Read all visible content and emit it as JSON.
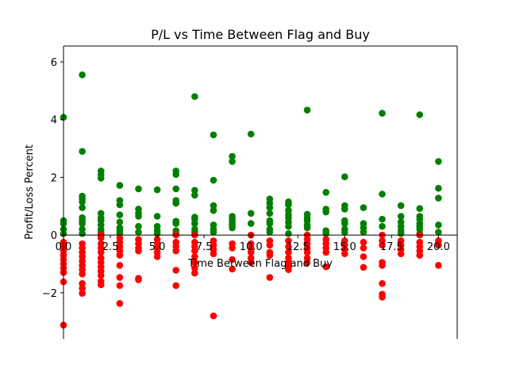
{
  "chart_data": {
    "type": "scatter",
    "title": "P/L vs Time Between Flag and Buy",
    "xlabel": "Time Between Flag and Buy",
    "ylabel": "Profit/Loss Percent",
    "xlim": [
      0,
      21
    ],
    "ylim": [
      -3.6,
      6.55
    ],
    "xticks": [
      "0.0",
      "2.5",
      "5.0",
      "7.5",
      "10.0",
      "12.5",
      "15.0",
      "17.5",
      "20.0"
    ],
    "xtick_values": [
      0,
      2.5,
      5,
      7.5,
      10,
      12.5,
      15,
      17.5,
      20
    ],
    "yticks": [
      "−2",
      "0",
      "2",
      "4",
      "6"
    ],
    "ytick_values": [
      -2,
      0,
      2,
      4,
      6
    ],
    "grid": false,
    "colors": {
      "profit": "#008000",
      "loss": "#ff0000"
    },
    "series": [
      {
        "color": "profit",
        "points": [
          [
            0,
            4.08
          ],
          [
            0,
            0.5
          ],
          [
            0,
            0.4
          ],
          [
            0,
            0.2
          ],
          [
            0,
            0.05
          ],
          [
            1,
            5.55
          ],
          [
            1,
            2.9
          ],
          [
            1,
            1.35
          ],
          [
            1,
            1.25
          ],
          [
            1,
            1.15
          ],
          [
            1,
            0.95
          ],
          [
            1,
            0.6
          ],
          [
            1,
            0.5
          ],
          [
            1,
            0.4
          ],
          [
            1,
            0.2
          ],
          [
            1,
            0.05
          ],
          [
            2,
            2.22
          ],
          [
            2,
            2.1
          ],
          [
            2,
            1.97
          ],
          [
            2,
            0.75
          ],
          [
            2,
            0.6
          ],
          [
            2,
            0.5
          ],
          [
            2,
            0.35
          ],
          [
            2,
            0.2
          ],
          [
            2,
            0.1
          ],
          [
            2,
            0.02
          ],
          [
            3,
            1.72
          ],
          [
            3,
            1.2
          ],
          [
            3,
            1.05
          ],
          [
            3,
            0.7
          ],
          [
            3,
            0.45
          ],
          [
            3,
            0.25
          ],
          [
            3,
            0.15
          ],
          [
            3,
            0.05
          ],
          [
            4,
            1.6
          ],
          [
            4,
            0.9
          ],
          [
            4,
            0.75
          ],
          [
            4,
            0.65
          ],
          [
            4,
            0.3
          ],
          [
            4,
            0.1
          ],
          [
            5,
            1.57
          ],
          [
            5,
            0.65
          ],
          [
            5,
            0.3
          ],
          [
            5,
            0.15
          ],
          [
            5,
            0.05
          ],
          [
            6,
            2.22
          ],
          [
            6,
            2.1
          ],
          [
            6,
            1.6
          ],
          [
            6,
            1.2
          ],
          [
            6,
            1.1
          ],
          [
            6,
            0.48
          ],
          [
            6,
            0.4
          ],
          [
            6,
            0.15
          ],
          [
            6,
            0.05
          ],
          [
            7,
            4.8
          ],
          [
            7,
            1.55
          ],
          [
            7,
            1.38
          ],
          [
            7,
            0.62
          ],
          [
            7,
            0.55
          ],
          [
            7,
            0.4
          ],
          [
            7,
            0.2
          ],
          [
            7,
            0.1
          ],
          [
            8,
            3.47
          ],
          [
            8,
            1.9
          ],
          [
            8,
            1.02
          ],
          [
            8,
            0.85
          ],
          [
            8,
            0.35
          ],
          [
            8,
            0.2
          ],
          [
            8,
            0.1
          ],
          [
            9,
            2.73
          ],
          [
            9,
            2.55
          ],
          [
            9,
            0.65
          ],
          [
            9,
            0.55
          ],
          [
            9,
            0.45
          ],
          [
            9,
            0.35
          ],
          [
            9,
            0.25
          ],
          [
            10,
            3.5
          ],
          [
            10,
            0.75
          ],
          [
            10,
            0.4
          ],
          [
            11,
            1.25
          ],
          [
            11,
            1.1
          ],
          [
            11,
            0.95
          ],
          [
            11,
            0.75
          ],
          [
            11,
            0.5
          ],
          [
            11,
            0.4
          ],
          [
            11,
            0.2
          ],
          [
            11,
            0.1
          ],
          [
            12,
            1.15
          ],
          [
            12,
            1.05
          ],
          [
            12,
            0.85
          ],
          [
            12,
            0.7
          ],
          [
            12,
            0.6
          ],
          [
            12,
            0.45
          ],
          [
            12,
            0.3
          ],
          [
            12,
            0.05
          ],
          [
            13,
            4.33
          ],
          [
            13,
            0.72
          ],
          [
            13,
            0.6
          ],
          [
            13,
            0.5
          ],
          [
            13,
            0.35
          ],
          [
            13,
            0.25
          ],
          [
            14,
            1.48
          ],
          [
            14,
            0.9
          ],
          [
            14,
            0.8
          ],
          [
            14,
            0.15
          ],
          [
            14,
            0.05
          ],
          [
            15,
            2.02
          ],
          [
            15,
            1.02
          ],
          [
            15,
            0.9
          ],
          [
            15,
            0.5
          ],
          [
            15,
            0.4
          ],
          [
            15,
            0.2
          ],
          [
            15,
            0.1
          ],
          [
            16,
            0.95
          ],
          [
            16,
            0.4
          ],
          [
            16,
            0.25
          ],
          [
            16,
            0.1
          ],
          [
            17,
            4.22
          ],
          [
            17,
            1.42
          ],
          [
            17,
            0.55
          ],
          [
            17,
            0.3
          ],
          [
            18,
            1.02
          ],
          [
            18,
            0.65
          ],
          [
            18,
            0.45
          ],
          [
            18,
            0.3
          ],
          [
            18,
            0.15
          ],
          [
            18,
            0.05
          ],
          [
            19,
            4.17
          ],
          [
            19,
            0.92
          ],
          [
            19,
            0.65
          ],
          [
            19,
            0.55
          ],
          [
            19,
            0.4
          ],
          [
            19,
            0.3
          ],
          [
            19,
            0.2
          ],
          [
            19,
            0.05
          ],
          [
            20,
            2.55
          ],
          [
            20,
            1.62
          ],
          [
            20,
            1.28
          ],
          [
            20,
            0.35
          ],
          [
            20,
            0.1
          ]
        ]
      },
      {
        "color": "loss",
        "points": [
          [
            0,
            -3.12
          ],
          [
            0,
            -1.62
          ],
          [
            0,
            -1.3
          ],
          [
            0,
            -1.15
          ],
          [
            0,
            -1.0
          ],
          [
            0,
            -0.85
          ],
          [
            0,
            -0.7
          ],
          [
            0,
            -0.55
          ],
          [
            0,
            -0.4
          ],
          [
            0,
            -0.25
          ],
          [
            1,
            -2.02
          ],
          [
            1,
            -1.85
          ],
          [
            1,
            -1.68
          ],
          [
            1,
            -1.35
          ],
          [
            1,
            -1.2
          ],
          [
            1,
            -1.05
          ],
          [
            1,
            -0.9
          ],
          [
            1,
            -0.75
          ],
          [
            1,
            -0.6
          ],
          [
            1,
            -0.45
          ],
          [
            1,
            -0.3
          ],
          [
            2,
            -1.72
          ],
          [
            2,
            -1.6
          ],
          [
            2,
            -1.4
          ],
          [
            2,
            -1.25
          ],
          [
            2,
            -1.1
          ],
          [
            2,
            -0.95
          ],
          [
            2,
            -0.8
          ],
          [
            2,
            -0.6
          ],
          [
            2,
            -0.45
          ],
          [
            2,
            -0.3
          ],
          [
            2,
            -0.1
          ],
          [
            2,
            0.0
          ],
          [
            3,
            -2.37
          ],
          [
            3,
            -1.75
          ],
          [
            3,
            -1.47
          ],
          [
            3,
            -1.05
          ],
          [
            3,
            -0.7
          ],
          [
            3,
            -0.55
          ],
          [
            3,
            -0.4
          ],
          [
            3,
            -0.25
          ],
          [
            3,
            -0.1
          ],
          [
            4,
            -1.55
          ],
          [
            4,
            -1.5
          ],
          [
            4,
            -0.55
          ],
          [
            4,
            -0.45
          ],
          [
            4,
            -0.3
          ],
          [
            4,
            -0.15
          ],
          [
            5,
            -0.75
          ],
          [
            5,
            -0.6
          ],
          [
            5,
            -0.45
          ],
          [
            5,
            -0.3
          ],
          [
            5,
            -0.15
          ],
          [
            6,
            -1.75
          ],
          [
            6,
            -1.22
          ],
          [
            6,
            -0.55
          ],
          [
            6,
            -0.4
          ],
          [
            6,
            -0.25
          ],
          [
            6,
            0.0
          ],
          [
            7,
            -1.32
          ],
          [
            7,
            -1.15
          ],
          [
            7,
            -0.95
          ],
          [
            7,
            -0.75
          ],
          [
            7,
            -0.55
          ],
          [
            7,
            -0.4
          ],
          [
            7,
            -0.25
          ],
          [
            7,
            0.0
          ],
          [
            8,
            -2.8
          ],
          [
            8,
            -0.65
          ],
          [
            8,
            -0.5
          ],
          [
            8,
            -0.35
          ],
          [
            8,
            -0.2
          ],
          [
            9,
            -1.18
          ],
          [
            9,
            -0.85
          ],
          [
            9,
            -0.45
          ],
          [
            9,
            -0.3
          ],
          [
            10,
            -0.95
          ],
          [
            10,
            -0.8
          ],
          [
            10,
            -0.6
          ],
          [
            10,
            -0.45
          ],
          [
            10,
            -0.3
          ],
          [
            10,
            0.0
          ],
          [
            11,
            -1.47
          ],
          [
            11,
            -0.7
          ],
          [
            11,
            -0.6
          ],
          [
            11,
            -0.35
          ],
          [
            11,
            -0.2
          ],
          [
            12,
            -1.2
          ],
          [
            12,
            -1.1
          ],
          [
            12,
            -0.95
          ],
          [
            12,
            -0.8
          ],
          [
            12,
            -0.6
          ],
          [
            12,
            -0.4
          ],
          [
            12,
            -0.2
          ],
          [
            13,
            -0.95
          ],
          [
            13,
            -0.8
          ],
          [
            13,
            -0.6
          ],
          [
            13,
            -0.45
          ],
          [
            13,
            -0.3
          ],
          [
            13,
            -0.15
          ],
          [
            13,
            0.0
          ],
          [
            14,
            -1.1
          ],
          [
            14,
            -0.6
          ],
          [
            14,
            -0.45
          ],
          [
            14,
            -0.3
          ],
          [
            14,
            -0.15
          ],
          [
            15,
            -0.65
          ],
          [
            15,
            -0.5
          ],
          [
            15,
            -0.35
          ],
          [
            15,
            -0.2
          ],
          [
            16,
            -1.12
          ],
          [
            16,
            -0.75
          ],
          [
            16,
            -0.45
          ],
          [
            16,
            -0.25
          ],
          [
            17,
            -2.15
          ],
          [
            17,
            -2.05
          ],
          [
            17,
            -1.68
          ],
          [
            17,
            -1.05
          ],
          [
            17,
            -0.95
          ],
          [
            17,
            -0.35
          ],
          [
            17,
            -0.2
          ],
          [
            17,
            0.0
          ],
          [
            18,
            -0.65
          ],
          [
            18,
            -0.5
          ],
          [
            18,
            -0.35
          ],
          [
            18,
            -0.2
          ],
          [
            19,
            -0.7
          ],
          [
            19,
            -0.55
          ],
          [
            19,
            -0.4
          ],
          [
            19,
            -0.25
          ],
          [
            19,
            0.0
          ],
          [
            20,
            -1.05
          ],
          [
            20,
            -0.35
          ],
          [
            20,
            -0.2
          ]
        ]
      }
    ]
  }
}
